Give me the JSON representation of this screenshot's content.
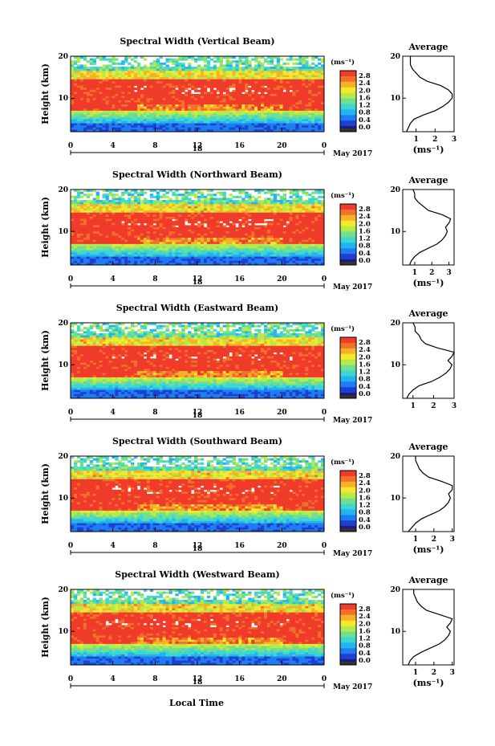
{
  "colormap": [
    "#1a1a80",
    "#1f3fd0",
    "#1e7df2",
    "#23b4f0",
    "#3fd6d2",
    "#6fe08e",
    "#b5ea4a",
    "#f5e82e",
    "#f6b226",
    "#f3702a",
    "#f03a2a"
  ],
  "chart_data": [
    {
      "type": "heatmap",
      "title": "Spectral Width (Vertical Beam)",
      "ylabel": "Height (km)",
      "ylim": [
        2,
        20
      ],
      "yticks": [
        "20",
        "10"
      ],
      "xlim": [
        0,
        24
      ],
      "xticks": [
        "0",
        "4",
        "8",
        "12",
        "16",
        "20",
        "0"
      ],
      "date_day": "18",
      "date_label": "May 2017",
      "colorbar_unit": "(ms⁻¹)",
      "colorbar_ticks": [
        "2.8",
        "2.4",
        "2.0",
        "1.6",
        "1.2",
        "0.8",
        "0.4",
        "0.0"
      ],
      "profile": {
        "title": "Average",
        "xticks": [
          "1",
          "2",
          "3"
        ],
        "xlabel": "(ms⁻¹)",
        "yticks": [
          "20",
          "10"
        ],
        "ylim": [
          2,
          20
        ],
        "xlim": [
          0.3,
          3.0
        ],
        "height": [
          2,
          3,
          4,
          5,
          6,
          7,
          8,
          9,
          10,
          11,
          12,
          13,
          14,
          15,
          16,
          17,
          18,
          19,
          20
        ],
        "width": [
          0.5,
          0.6,
          0.7,
          0.9,
          1.4,
          2.0,
          2.4,
          2.7,
          2.9,
          2.9,
          2.7,
          2.3,
          1.6,
          1.2,
          1.0,
          0.8,
          0.7,
          0.7,
          0.7
        ]
      }
    },
    {
      "type": "heatmap",
      "title": "Spectral Width (Northward Beam)",
      "ylabel": "Height (km)",
      "ylim": [
        2,
        20
      ],
      "yticks": [
        "20",
        "10"
      ],
      "xlim": [
        0,
        24
      ],
      "xticks": [
        "0",
        "4",
        "8",
        "12",
        "16",
        "20",
        "0"
      ],
      "date_day": "18",
      "date_label": "May 2017",
      "colorbar_unit": "(ms⁻¹)",
      "colorbar_ticks": [
        "2.8",
        "2.4",
        "2.0",
        "1.6",
        "1.2",
        "0.8",
        "0.4",
        "0.0"
      ],
      "profile": {
        "title": "Average",
        "xticks": [
          "1",
          "2",
          "3"
        ],
        "xlabel": "(ms⁻¹)",
        "yticks": [
          "20",
          "10"
        ],
        "ylim": [
          2,
          20
        ],
        "xlim": [
          0.3,
          3.3
        ],
        "height": [
          2,
          3,
          4,
          5,
          6,
          7,
          8,
          9,
          10,
          11,
          12,
          13,
          14,
          15,
          16,
          17,
          18,
          19,
          20
        ],
        "width": [
          0.7,
          0.8,
          1.0,
          1.3,
          1.8,
          2.3,
          2.6,
          2.8,
          2.9,
          2.8,
          3.0,
          3.1,
          2.6,
          1.8,
          1.5,
          1.2,
          1.0,
          1.0,
          0.9
        ]
      }
    },
    {
      "type": "heatmap",
      "title": "Spectral Width (Eastward Beam)",
      "ylabel": "Height (km)",
      "ylim": [
        2,
        20
      ],
      "yticks": [
        "20",
        "10"
      ],
      "xlim": [
        0,
        24
      ],
      "xticks": [
        "0",
        "4",
        "8",
        "12",
        "16",
        "20",
        "0"
      ],
      "date_day": "18",
      "date_label": "May 2017",
      "colorbar_unit": "(ms⁻¹)",
      "colorbar_ticks": [
        "2.8",
        "2.4",
        "2.0",
        "1.6",
        "1.2",
        "0.8",
        "0.4",
        "0.0"
      ],
      "profile": {
        "title": "Average",
        "xticks": [
          "1",
          "2",
          "3"
        ],
        "xlabel": "",
        "yticks": [
          "20",
          "10"
        ],
        "ylim": [
          2,
          20
        ],
        "xlim": [
          0.5,
          3.0
        ],
        "height": [
          2,
          3,
          4,
          5,
          6,
          7,
          8,
          9,
          10,
          11,
          12,
          13,
          14,
          15,
          16,
          17,
          18,
          19,
          20
        ],
        "width": [
          0.7,
          0.8,
          1.0,
          1.3,
          1.9,
          2.3,
          2.6,
          2.8,
          2.9,
          2.7,
          2.9,
          3.0,
          2.2,
          1.6,
          1.4,
          1.3,
          1.1,
          1.1,
          1.0
        ]
      }
    },
    {
      "type": "heatmap",
      "title": "Spectral Width (Southward Beam)",
      "ylabel": "Height (km)",
      "ylim": [
        2,
        20
      ],
      "yticks": [
        "20",
        "10"
      ],
      "xlim": [
        0,
        24
      ],
      "xticks": [
        "0",
        "4",
        "8",
        "12",
        "16",
        "20",
        "0"
      ],
      "date_day": "18",
      "date_label": "May 2017",
      "colorbar_unit": "(ms⁻¹)",
      "colorbar_ticks": [
        "2.8",
        "2.4",
        "2.0",
        "1.6",
        "1.2",
        "0.8",
        "0.4",
        "0.0"
      ],
      "profile": {
        "title": "Average",
        "xticks": [
          "1",
          "2",
          "3"
        ],
        "xlabel": "(ms⁻¹)",
        "yticks": [
          "20",
          "10"
        ],
        "ylim": [
          2,
          20
        ],
        "xlim": [
          0.3,
          3.1
        ],
        "height": [
          2,
          3,
          4,
          5,
          6,
          7,
          8,
          9,
          10,
          11,
          12,
          13,
          14,
          15,
          16,
          17,
          18,
          19,
          20
        ],
        "width": [
          0.6,
          0.8,
          1.0,
          1.3,
          1.8,
          2.3,
          2.6,
          2.8,
          2.9,
          2.8,
          3.0,
          3.0,
          2.4,
          1.7,
          1.4,
          1.2,
          1.1,
          1.0,
          1.0
        ]
      }
    },
    {
      "type": "heatmap",
      "title": "Spectral Width (Westward Beam)",
      "ylabel": "Height (km)",
      "ylim": [
        2,
        20
      ],
      "yticks": [
        "20",
        "10"
      ],
      "xlim": [
        0,
        24
      ],
      "xticks": [
        "0",
        "4",
        "8",
        "12",
        "16",
        "20",
        "0"
      ],
      "date_day": "18",
      "date_label": "May 2017",
      "colorbar_unit": "(ms⁻¹)",
      "colorbar_ticks": [
        "2.8",
        "2.4",
        "2.0",
        "1.6",
        "1.2",
        "0.8",
        "0.4",
        "0.0"
      ],
      "profile": {
        "title": "Average",
        "xticks": [
          "1",
          "2",
          "3"
        ],
        "xlabel": "(ms⁻¹)",
        "yticks": [
          "20",
          "10"
        ],
        "ylim": [
          2,
          20
        ],
        "xlim": [
          0.3,
          3.1
        ],
        "height": [
          2,
          3,
          4,
          5,
          6,
          7,
          8,
          9,
          10,
          11,
          12,
          13,
          14,
          15,
          16,
          17,
          18,
          19,
          20
        ],
        "width": [
          0.6,
          0.7,
          0.9,
          1.3,
          1.8,
          2.3,
          2.6,
          2.8,
          2.9,
          2.7,
          2.9,
          3.0,
          2.3,
          1.6,
          1.3,
          1.1,
          1.0,
          0.9,
          0.9
        ]
      }
    }
  ],
  "xlabel": "Local Time"
}
